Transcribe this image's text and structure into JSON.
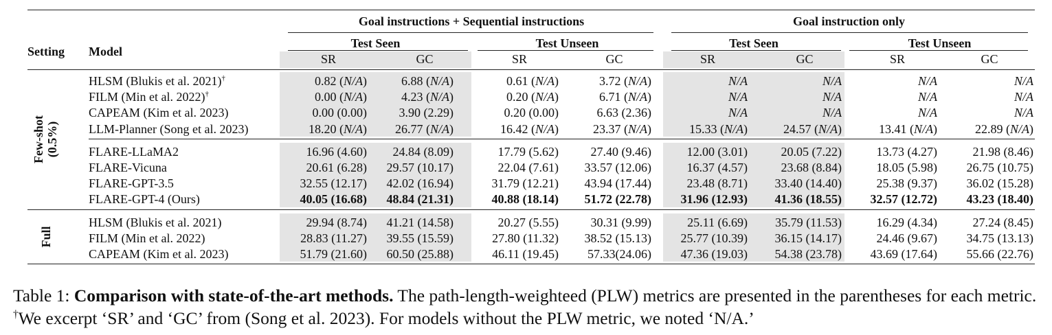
{
  "header": {
    "setting_label": "Setting",
    "model_label": "Model",
    "group_left": "Goal instructions + Sequential instructions",
    "group_right": "Goal instruction only",
    "test_seen": "Test Seen",
    "test_unseen": "Test Unseen",
    "sr": "SR",
    "gc": "GC"
  },
  "sections": [
    {
      "setting": "Few-shot (0.5%)",
      "setting_lines": [
        "Few-shot",
        "(0.5%)"
      ],
      "groups": [
        [
          {
            "model": "HLSM (Blukis et al. 2021)",
            "dagger": "†",
            "cells": [
              "0.82 (N/A)",
              "6.88 (N/A)",
              "0.61 (N/A)",
              "3.72 (N/A)",
              "N/A",
              "N/A",
              "N/A",
              "N/A"
            ]
          },
          {
            "model": "FILM (Min et al. 2022)",
            "dagger": "†",
            "cells": [
              "0.00 (N/A)",
              "4.23 (N/A)",
              "0.20 (N/A)",
              "6.71 (N/A)",
              "N/A",
              "N/A",
              "N/A",
              "N/A"
            ]
          },
          {
            "model": "CAPEAM (Kim et al. 2023)",
            "dagger": "",
            "cells": [
              "0.00 (0.00)",
              "3.90 (2.29)",
              "0.20 (0.00)",
              "6.63 (2.36)",
              "N/A",
              "N/A",
              "N/A",
              "N/A"
            ]
          },
          {
            "model": "LLM-Planner (Song et al. 2023)",
            "dagger": "",
            "cells": [
              "18.20 (N/A)",
              "26.77 (N/A)",
              "16.42 (N/A)",
              "23.37 (N/A)",
              "15.33 (N/A)",
              "24.57 (N/A)",
              "13.41 (N/A)",
              "22.89 (N/A)"
            ]
          }
        ],
        [
          {
            "model": "FLARE-LLaMA2",
            "dagger": "",
            "cells": [
              "16.96 (4.60)",
              "24.84 (8.09)",
              "17.79 (5.62)",
              "27.40 (9.46)",
              "12.00 (3.01)",
              "20.05 (7.22)",
              "13.73 (4.27)",
              "21.98 (8.46)"
            ]
          },
          {
            "model": "FLARE-Vicuna",
            "dagger": "",
            "cells": [
              "20.61 (6.28)",
              "29.57 (10.17)",
              "22.04 (7.61)",
              "33.57 (12.06)",
              "16.37 (4.57)",
              "23.68 (8.84)",
              "18.05 (5.98)",
              "26.75 (10.75)"
            ]
          },
          {
            "model": "FLARE-GPT-3.5",
            "dagger": "",
            "cells": [
              "32.55 (12.17)",
              "42.02 (16.94)",
              "31.79 (12.21)",
              "43.94 (17.44)",
              "23.48 (8.71)",
              "33.40 (14.40)",
              "25.38 (9.37)",
              "36.02 (15.28)"
            ]
          },
          {
            "model": "FLARE-GPT-4 (Ours)",
            "dagger": "",
            "bold": true,
            "cells": [
              "40.05 (16.68)",
              "48.84 (21.31)",
              "40.88 (18.14)",
              "51.72 (22.78)",
              "31.96 (12.93)",
              "41.36 (18.55)",
              "32.57 (12.72)",
              "43.23 (18.40)"
            ]
          }
        ]
      ]
    },
    {
      "setting": "Full",
      "setting_lines": [
        "Full"
      ],
      "groups": [
        [
          {
            "model": "HLSM (Blukis et al. 2021)",
            "dagger": "",
            "cells": [
              "29.94 (8.74)",
              "41.21 (14.58)",
              "20.27 (5.55)",
              "30.31 (9.99)",
              "25.11 (6.69)",
              "35.79 (11.53)",
              "16.29 (4.34)",
              "27.24 (8.45)"
            ]
          },
          {
            "model": "FILM (Min et al. 2022)",
            "dagger": "",
            "cells": [
              "28.83 (11.27)",
              "39.55 (15.59)",
              "27.80 (11.32)",
              "38.52 (15.13)",
              "25.77 (10.39)",
              "36.15 (14.17)",
              "24.46 (9.67)",
              "34.75 (13.13)"
            ]
          },
          {
            "model": "CAPEAM (Kim et al. 2023)",
            "dagger": "",
            "cells": [
              "51.79 (21.60)",
              "60.50 (25.88)",
              "46.11 (19.45)",
              "57.33(24.06)",
              "47.36 (19.03)",
              "54.38 (23.78)",
              "43.69 (17.64)",
              "55.66 (22.76)"
            ]
          }
        ]
      ]
    }
  ],
  "caption": {
    "prefix": "Table 1: ",
    "bold": "Comparison with state-of-the-art methods.",
    "text1": " The path-length-weighteed (PLW) metrics are presented in the parentheses for each metric. ",
    "dagger": "†",
    "text2": "We excerpt ‘SR’ and ‘GC’ from (Song et al. 2023). For models without the PLW metric, we noted ‘N/A.’"
  }
}
